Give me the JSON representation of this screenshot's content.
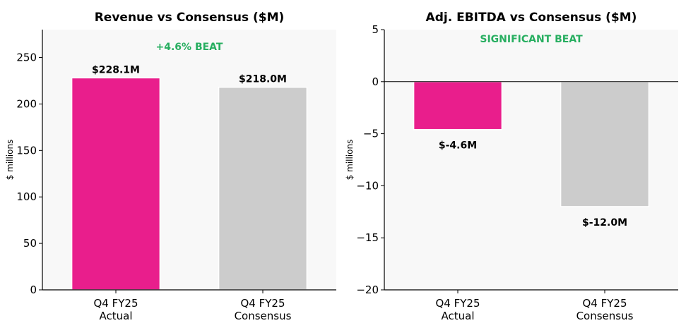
{
  "colors": {
    "actual": "#e91e8c",
    "consensus": "#cccccc",
    "note": "#27ae60",
    "plot_bg": "#f8f8f8"
  },
  "chart_data": [
    {
      "type": "bar",
      "title": "Revenue vs Consensus ($M)",
      "ylabel": "$ millions",
      "xlabel": "",
      "categories": [
        "Q4 FY25\nActual",
        "Q4 FY25\nConsensus"
      ],
      "values": [
        228.1,
        218.0
      ],
      "data_labels": [
        "$228.1M",
        "$218.0M"
      ],
      "ylim": [
        0,
        280
      ],
      "yticks": [
        0,
        50,
        100,
        150,
        200,
        250
      ],
      "annotation": "+4.6% BEAT",
      "grid": false
    },
    {
      "type": "bar",
      "title": "Adj. EBITDA vs Consensus ($M)",
      "ylabel": "$ millions",
      "xlabel": "",
      "categories": [
        "Q4 FY25\nActual",
        "Q4 FY25\nConsensus"
      ],
      "values": [
        -4.6,
        -12.0
      ],
      "data_labels": [
        "$-4.6M",
        "$-12.0M"
      ],
      "ylim": [
        -20,
        5
      ],
      "yticks": [
        -20,
        -15,
        -10,
        -5,
        0,
        5
      ],
      "annotation": "SIGNIFICANT BEAT",
      "zero_line": true,
      "grid": false
    }
  ]
}
